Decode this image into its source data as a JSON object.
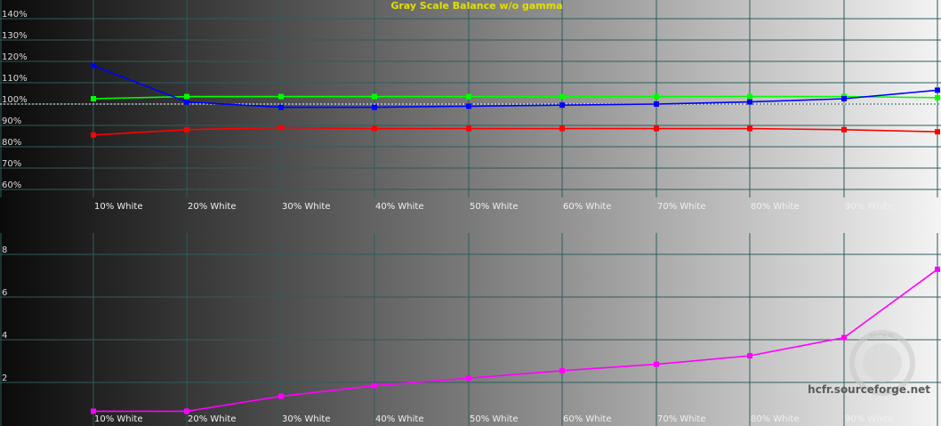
{
  "chart_data": [
    {
      "type": "line",
      "title": "Gray Scale Balance w/o gamma",
      "categories": [
        "10% White",
        "20% White",
        "30% White",
        "40% White",
        "50% White",
        "60% White",
        "70% White",
        "80% White",
        "90% White",
        "100% White"
      ],
      "y_tick_labels": [
        "60%",
        "70%",
        "80%",
        "90%",
        "100%",
        "110%",
        "120%",
        "130%",
        "140%"
      ],
      "ylim": [
        55,
        145
      ],
      "reference_line": 100,
      "grid": true,
      "series": [
        {
          "color": "#00ff00",
          "values": [
            102.5,
            103.5,
            103.5,
            103.5,
            103.5,
            103.5,
            103.5,
            103.5,
            103.5,
            103
          ]
        },
        {
          "color": "#0000ff",
          "values": [
            118,
            101,
            98.5,
            98.5,
            99,
            99.5,
            100,
            101,
            102.5,
            106.5
          ]
        },
        {
          "color": "#ff0000",
          "values": [
            85.5,
            88,
            89,
            88.5,
            88.5,
            88.5,
            88.5,
            88.5,
            88,
            87
          ]
        }
      ]
    },
    {
      "type": "line",
      "categories": [
        "10% White",
        "20% White",
        "30% White",
        "40% White",
        "50% White",
        "60% White",
        "70% White",
        "80% White",
        "90% White",
        "100% White"
      ],
      "y_tick_labels": [
        "2",
        "4",
        "6",
        "8"
      ],
      "ylim": [
        0.5,
        9
      ],
      "grid": true,
      "series": [
        {
          "color": "#ff00ff",
          "values": [
            0.65,
            0.65,
            1.35,
            1.85,
            2.2,
            2.55,
            2.85,
            3.25,
            4.1,
            7.3
          ]
        }
      ]
    }
  ],
  "watermark": {
    "text": "hcfr.sourceforge.net",
    "logo_text": "GLOBAL"
  },
  "colors": {
    "grid": "#2f5c5c",
    "title": "#e0e000",
    "tick_label": "#dddddd",
    "category_label": "#f0f0f0"
  }
}
